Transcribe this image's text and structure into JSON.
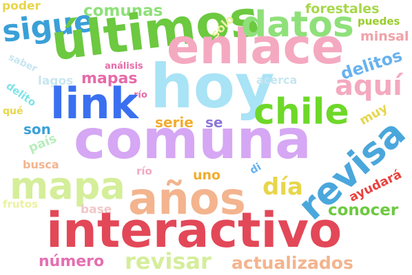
{
  "words": [
    {
      "id": "poder",
      "text": "poder",
      "color": "#e7d64a"
    },
    {
      "id": "comunas",
      "text": "comunas",
      "color": "#8fe07a"
    },
    {
      "id": "sigue",
      "text": "sigue",
      "color": "#3aa0d8"
    },
    {
      "id": "ultimos",
      "text": "últimos",
      "color": "#6cc940"
    },
    {
      "id": "enlace",
      "text": "enlace",
      "color": "#f4a9c1"
    },
    {
      "id": "datos",
      "text": "datos",
      "color": "#8fe07a"
    },
    {
      "id": "forestales",
      "text": "forestales",
      "color": "#a6d84a"
    },
    {
      "id": "puedes",
      "text": "puedes",
      "color": "#98cd2a"
    },
    {
      "id": "minsal",
      "text": "minsal",
      "color": "#f0a2a8"
    },
    {
      "id": "solo",
      "text": "sólo",
      "color": "#ecf1a0"
    },
    {
      "id": "saber",
      "text": "saber",
      "color": "#c6e6f0"
    },
    {
      "id": "analisis",
      "text": "análisis",
      "color": "#e66aa8"
    },
    {
      "id": "lagos",
      "text": "lagos",
      "color": "#c6e6f0"
    },
    {
      "id": "mapas",
      "text": "mapas",
      "color": "#e66aa8"
    },
    {
      "id": "hoy",
      "text": "hoy",
      "color": "#a9e3f6"
    },
    {
      "id": "delitos",
      "text": "delitos",
      "color": "#68b2ee"
    },
    {
      "id": "acerca",
      "text": "acerca",
      "color": "#c6e6f0"
    },
    {
      "id": "aqui",
      "text": "aquí",
      "color": "#f4a9c1"
    },
    {
      "id": "delito",
      "text": "delito",
      "color": "#7fe3e8"
    },
    {
      "id": "rio_top",
      "text": "río",
      "color": "#e66aa8"
    },
    {
      "id": "link",
      "text": "link",
      "color": "#3a70f0"
    },
    {
      "id": "que",
      "text": "qué",
      "color": "#e7d64a"
    },
    {
      "id": "son",
      "text": "son",
      "color": "#3aa0d8"
    },
    {
      "id": "serie",
      "text": "serie",
      "color": "#f1ad2e"
    },
    {
      "id": "se",
      "text": "se",
      "color": "#8e76d8"
    },
    {
      "id": "chile",
      "text": "chile",
      "color": "#6ed829"
    },
    {
      "id": "muy",
      "text": "muy",
      "color": "#e7d64a"
    },
    {
      "id": "pais",
      "text": "país",
      "color": "#b8edbc"
    },
    {
      "id": "comuna",
      "text": "comuna",
      "color": "#d6a7f4"
    },
    {
      "id": "revisa",
      "text": "revisa",
      "color": "#4aa7dc"
    },
    {
      "id": "busca",
      "text": "busca",
      "color": "#f3b48e"
    },
    {
      "id": "mapa",
      "text": "mapa",
      "color": "#d5ee9a"
    },
    {
      "id": "rio_mid",
      "text": "río",
      "color": "#f4a9c1"
    },
    {
      "id": "uno",
      "text": "uno",
      "color": "#f1ad2e"
    },
    {
      "id": "di",
      "text": "di",
      "color": "#68b2ee"
    },
    {
      "id": "dia",
      "text": "día",
      "color": "#e7d64a"
    },
    {
      "id": "anos",
      "text": "años",
      "color": "#f3b48e"
    },
    {
      "id": "ayudara",
      "text": "ayudará",
      "color": "#e8423f"
    },
    {
      "id": "frutos",
      "text": "frutos",
      "color": "#ecf1a0"
    },
    {
      "id": "base",
      "text": "base",
      "color": "#f0c7c7"
    },
    {
      "id": "conocer",
      "text": "conocer",
      "color": "#6cc940"
    },
    {
      "id": "interactivo",
      "text": "interactivo",
      "color": "#e24858"
    },
    {
      "id": "numero",
      "text": "número",
      "color": "#e46fb2"
    },
    {
      "id": "revisar",
      "text": "revisar",
      "color": "#d5ee9a"
    },
    {
      "id": "actualizados",
      "text": "actualizados",
      "color": "#f3b48e"
    }
  ]
}
